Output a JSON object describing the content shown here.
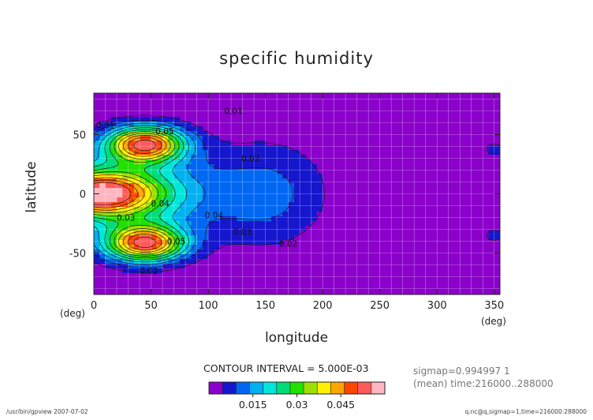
{
  "chart_data": {
    "type": "heatmap",
    "title": "specific humidity",
    "xlabel": "longitude",
    "ylabel": "latitude",
    "x_unit_left": "(deg)",
    "x_unit_right": "(deg)",
    "xlim": [
      0,
      355
    ],
    "ylim": [
      -85,
      85
    ],
    "x_ticks": [
      0,
      50,
      100,
      150,
      200,
      250,
      300,
      350
    ],
    "y_ticks": [
      50,
      0,
      -50
    ],
    "grid": true,
    "contour_interval_label": "CONTOUR INTERVAL = 5.000E-03",
    "contour_levels": [
      0,
      0.005,
      0.01,
      0.015,
      0.02,
      0.025,
      0.03,
      0.035,
      0.04,
      0.045,
      0.05,
      0.055
    ],
    "colorbar_ticks": [
      "0.015",
      "0.03",
      "0.045"
    ],
    "contour_labels": [
      {
        "text": "0.01",
        "lon": 10,
        "lat": 58
      },
      {
        "text": "0.05",
        "lon": 62,
        "lat": 53
      },
      {
        "text": "0.01",
        "lon": 122,
        "lat": 70
      },
      {
        "text": "0.02",
        "lon": 137,
        "lat": 30
      },
      {
        "text": "0.04",
        "lon": 58,
        "lat": -8
      },
      {
        "text": "0.03",
        "lon": 28,
        "lat": -20
      },
      {
        "text": "0.04",
        "lon": 105,
        "lat": -18
      },
      {
        "text": "0.03",
        "lon": 130,
        "lat": -32
      },
      {
        "text": "0.05",
        "lon": 72,
        "lat": -40
      },
      {
        "text": "0.02",
        "lon": 170,
        "lat": -42
      },
      {
        "text": "0.02",
        "lon": 48,
        "lat": -65
      }
    ],
    "colors": {
      "background": "#8b00cb",
      "levels": [
        "#8b00cb",
        "#1616cf",
        "#0067f3",
        "#00b0f0",
        "#00e6d8",
        "#00dc7a",
        "#22e000",
        "#9de000",
        "#fff000",
        "#ffa500",
        "#ff4500",
        "#ff5a5a",
        "#ffb6c1"
      ]
    }
  },
  "info": {
    "sigmap": "sigmap=0.994997 1",
    "mean_time": "(mean) time:216000..288000"
  },
  "footer": {
    "left": "/usr/bin/gpview  2007-07-02",
    "right": "q.nc@q,sigmap=1,time=216000:288000"
  }
}
